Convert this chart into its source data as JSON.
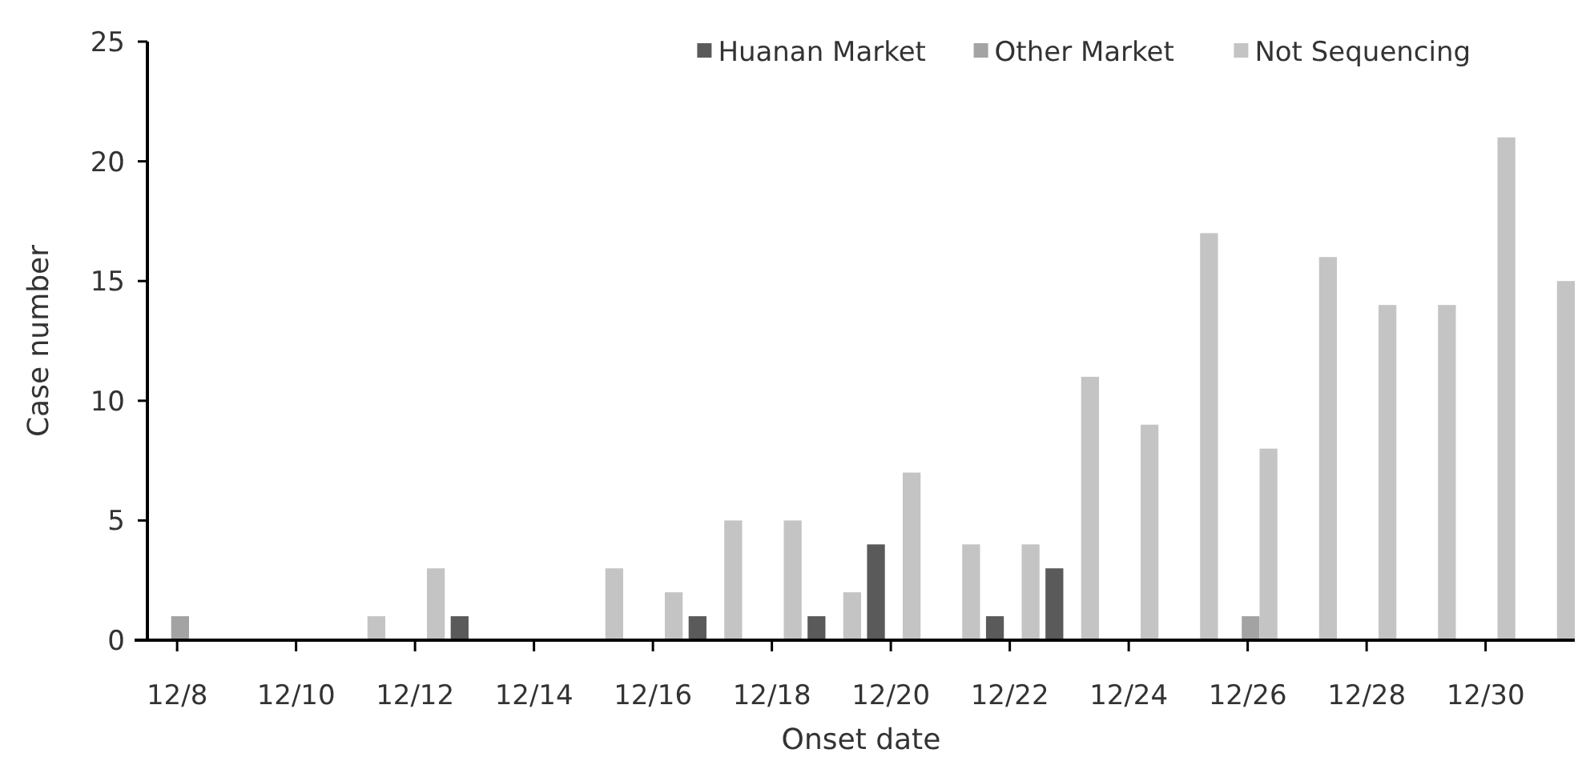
{
  "chart_data": {
    "type": "bar",
    "xlabel": "Onset date",
    "ylabel": "Case number",
    "categories": [
      "12/8",
      null,
      "12/10",
      null,
      "12/12",
      null,
      "12/14",
      null,
      "12/16",
      null,
      "12/18",
      null,
      "12/20",
      null,
      "12/22",
      null,
      "12/24",
      null,
      "12/26",
      null,
      "12/28",
      null,
      "12/30",
      null
    ],
    "series": [
      {
        "name": "Huanan Market",
        "color": "#5a5a5a",
        "values": [
          0,
          0,
          0,
          0,
          0,
          1,
          0,
          0,
          0,
          1,
          0,
          1,
          4,
          0,
          1,
          3,
          0,
          0,
          0,
          0,
          0,
          0,
          0,
          0
        ]
      },
      {
        "name": "Other Market",
        "color": "#a3a3a3",
        "values": [
          1,
          0,
          0,
          0,
          0,
          0,
          0,
          0,
          0,
          0,
          0,
          0,
          0,
          0,
          0,
          0,
          0,
          0,
          1,
          0,
          0,
          0,
          0,
          0
        ]
      },
      {
        "name": "Not Sequencing",
        "color": "#c4c4c4",
        "values": [
          0,
          0,
          0,
          1,
          3,
          0,
          0,
          3,
          2,
          5,
          5,
          2,
          7,
          4,
          4,
          11,
          9,
          17,
          8,
          16,
          14,
          14,
          21,
          15
        ]
      }
    ],
    "ylim": [
      0,
      25
    ],
    "yticks": [
      0,
      5,
      10,
      15,
      20,
      25
    ],
    "grid": false,
    "legend": "top right"
  }
}
